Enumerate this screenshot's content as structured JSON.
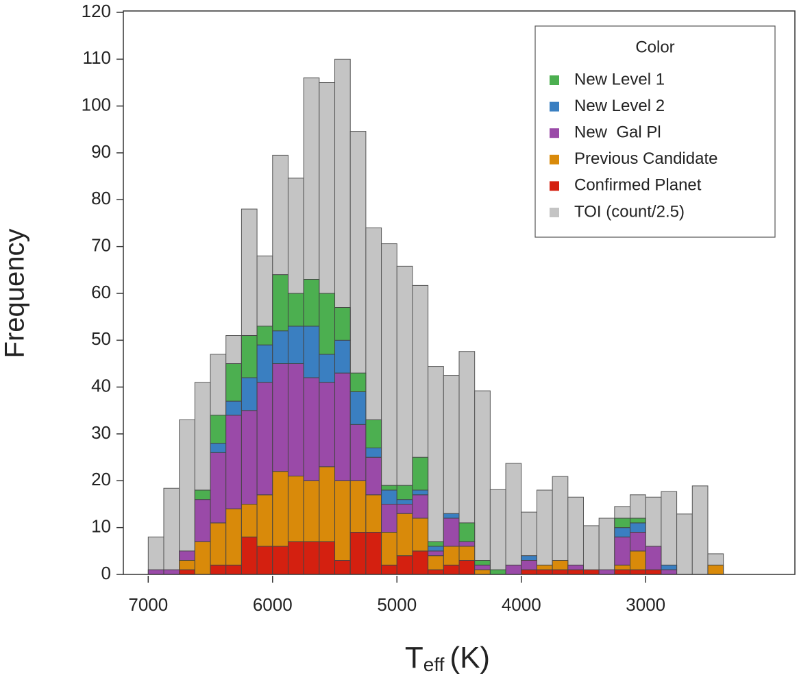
{
  "chart_data": {
    "type": "histogram",
    "xlabel": {
      "main": "T",
      "sub": "eff",
      "unit": "(K)"
    },
    "ylabel": "Frequency",
    "legend_title": "Color",
    "legend": "upper right",
    "bins": [
      7000,
      6875,
      6750,
      6625,
      6500,
      6375,
      6250,
      6125,
      6000,
      5875,
      5750,
      5625,
      5500,
      5375,
      5250,
      5125,
      5000,
      4875,
      4750,
      4625,
      4500,
      4375,
      4250,
      4125,
      4000,
      3875,
      3750,
      3625,
      3500,
      3375,
      3250,
      3125,
      3000,
      2875,
      2750,
      2625,
      2500,
      2375
    ],
    "xlim": [
      7200,
      1800
    ],
    "xticks": [
      7000,
      6000,
      5000,
      4000,
      3000
    ],
    "ylim": [
      0,
      120
    ],
    "yticks": [
      0,
      10,
      20,
      30,
      40,
      50,
      60,
      70,
      80,
      90,
      100,
      110,
      120
    ],
    "series": [
      {
        "name": "New Level 1",
        "color": "#4caf50",
        "stacked": true,
        "values": [
          0,
          0,
          0,
          2,
          6,
          8,
          9,
          4,
          12,
          7,
          10,
          13,
          7,
          4,
          6,
          1,
          3,
          7,
          1,
          0,
          4,
          1,
          1,
          0,
          0,
          0,
          0,
          0,
          0,
          0,
          2,
          1,
          0,
          0,
          0,
          0,
          0
        ]
      },
      {
        "name": "New Level 2",
        "color": "#3a7fc1",
        "stacked": true,
        "values": [
          0,
          0,
          0,
          0,
          2,
          3,
          7,
          8,
          7,
          8,
          11,
          6,
          7,
          7,
          2,
          3,
          1,
          1,
          1,
          1,
          0,
          0,
          0,
          0,
          1,
          0,
          0,
          0,
          0,
          0,
          2,
          2,
          0,
          1,
          0,
          0,
          0
        ]
      },
      {
        "name": "New  Gal Pl",
        "color": "#9a4aa8",
        "stacked": true,
        "values": [
          1,
          1,
          2,
          9,
          15,
          20,
          20,
          24,
          23,
          24,
          22,
          18,
          23,
          12,
          8,
          6,
          2,
          5,
          1,
          6,
          1,
          1,
          0,
          2,
          2,
          0,
          0,
          1,
          0,
          1,
          6,
          4,
          5,
          1,
          0,
          0,
          0
        ]
      },
      {
        "name": "Previous Candidate",
        "color": "#d98a0a",
        "stacked": true,
        "values": [
          0,
          0,
          2,
          7,
          9,
          12,
          7,
          11,
          16,
          14,
          13,
          16,
          17,
          11,
          8,
          7,
          9,
          7,
          3,
          4,
          3,
          1,
          0,
          0,
          0,
          1,
          2,
          0,
          0,
          0,
          1,
          4,
          0,
          0,
          0,
          0,
          2
        ]
      },
      {
        "name": "Confirmed Planet",
        "color": "#d42010",
        "stacked": true,
        "values": [
          0,
          0,
          1,
          0,
          2,
          2,
          8,
          6,
          6,
          7,
          7,
          7,
          3,
          9,
          9,
          2,
          4,
          5,
          1,
          2,
          3,
          0,
          0,
          0,
          1,
          1,
          1,
          1,
          1,
          0,
          1,
          1,
          1,
          0,
          0,
          0,
          0
        ]
      },
      {
        "name": "TOI (count/2.5)",
        "color": "#c4c4c4",
        "stacked": false,
        "values": [
          8,
          18.4,
          33,
          41,
          47,
          51,
          78,
          68,
          89.5,
          84.6,
          106,
          105,
          110,
          94.6,
          74,
          70.6,
          65.8,
          61.7,
          44.4,
          42.5,
          47.6,
          39.2,
          18.1,
          23.7,
          13.3,
          18,
          20.9,
          16.5,
          10.4,
          12,
          14.5,
          17,
          16.5,
          17.7,
          12.9,
          18.9,
          4.4
        ]
      }
    ]
  }
}
